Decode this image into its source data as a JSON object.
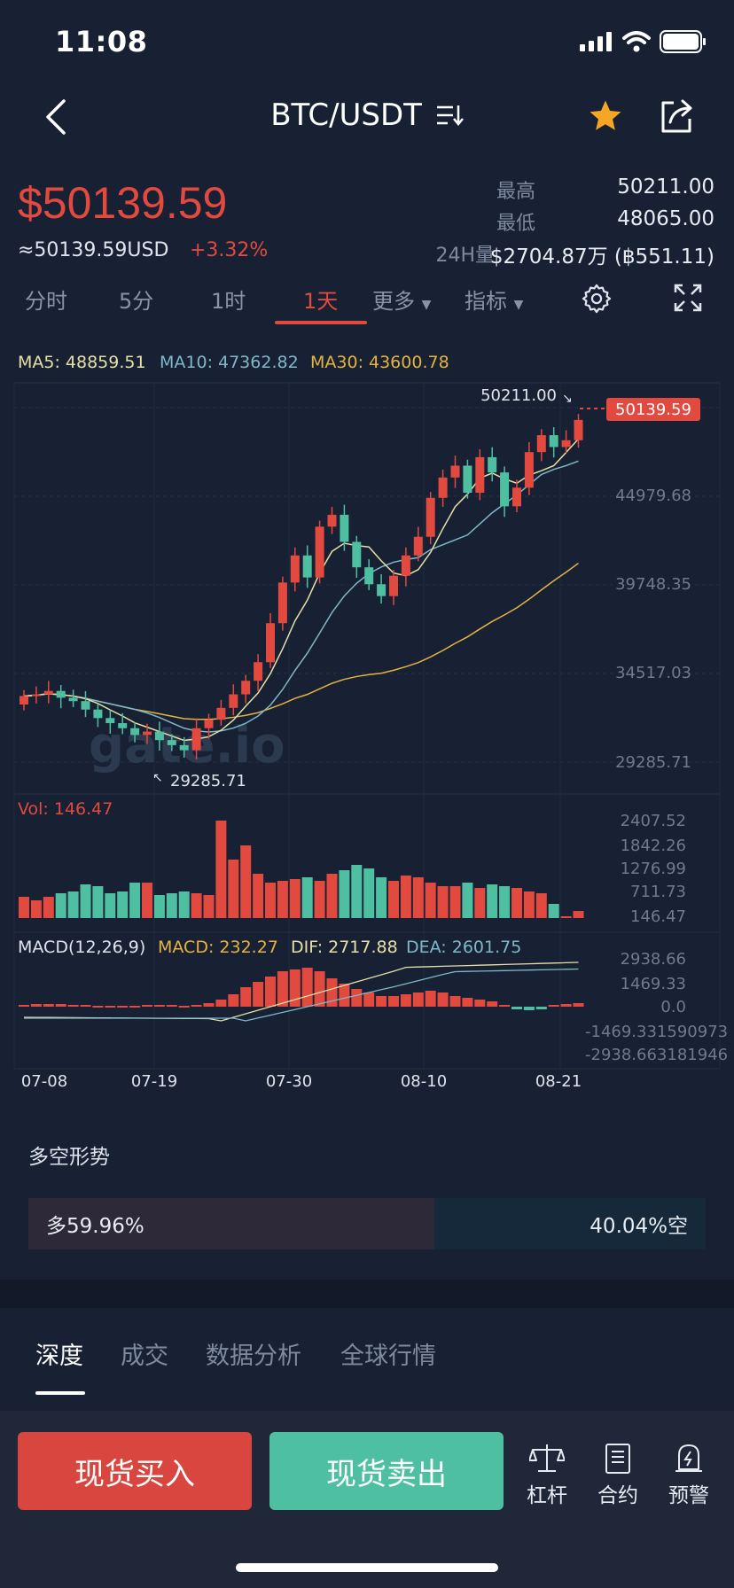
{
  "status": {
    "time": "11:08"
  },
  "nav": {
    "title": "BTC/USDT"
  },
  "price": {
    "main": "$50139.59",
    "usd": "≈50139.59USD",
    "change": "+3.32%"
  },
  "stats": [
    {
      "label": "最高",
      "value": "50211.00"
    },
    {
      "label": "最低",
      "value": "48065.00"
    },
    {
      "label": "24H量",
      "value": "$2704.87万 (฿551.11)"
    }
  ],
  "tabs": [
    "分时",
    "5分",
    "1时",
    "1天",
    "更多",
    "指标"
  ],
  "indicators": {
    "ma5": "MA5: 48859.51",
    "ma10": "MA10: 47362.82",
    "ma30": "MA30: 43600.78"
  },
  "chart_data": {
    "type": "candlestick",
    "x_ticks": [
      "07-08",
      "07-19",
      "07-30",
      "08-10",
      "08-21"
    ],
    "y_ticks": [
      "44979.68",
      "39748.35",
      "34517.03",
      "29285.71"
    ],
    "high_label": "50211.00",
    "low_label": "29285.71",
    "last_price_tag": "50139.59",
    "watermark": "gate.io",
    "volume": {
      "label": "Vol: 146.47",
      "ticks": [
        "2407.52",
        "1842.26",
        "1276.99",
        "711.73",
        "146.47"
      ]
    },
    "macd": {
      "label": "MACD(12,26,9)",
      "macd": "MACD: 232.27",
      "dif": "DIF: 2717.88",
      "dea": "DEA: 2601.75",
      "ticks": [
        "2938.66",
        "1469.33",
        "0.0",
        "-1469.331590973",
        "-2938.663181946"
      ]
    },
    "colors": {
      "up": "#e2493f",
      "down": "#4fbfa2",
      "ma5": "#e6e0a6",
      "ma10": "#7fb8c9",
      "ma30": "#e6b340"
    }
  },
  "bias": {
    "title": "多空形势",
    "long": "多59.96%",
    "short": "40.04%空",
    "long_pct": 59.96
  },
  "lower_tabs": [
    "深度",
    "成交",
    "数据分析",
    "全球行情"
  ],
  "actions": {
    "buy": "现货买入",
    "sell": "现货卖出",
    "leverage": "杠杆",
    "contract": "合约",
    "alert": "预警"
  }
}
